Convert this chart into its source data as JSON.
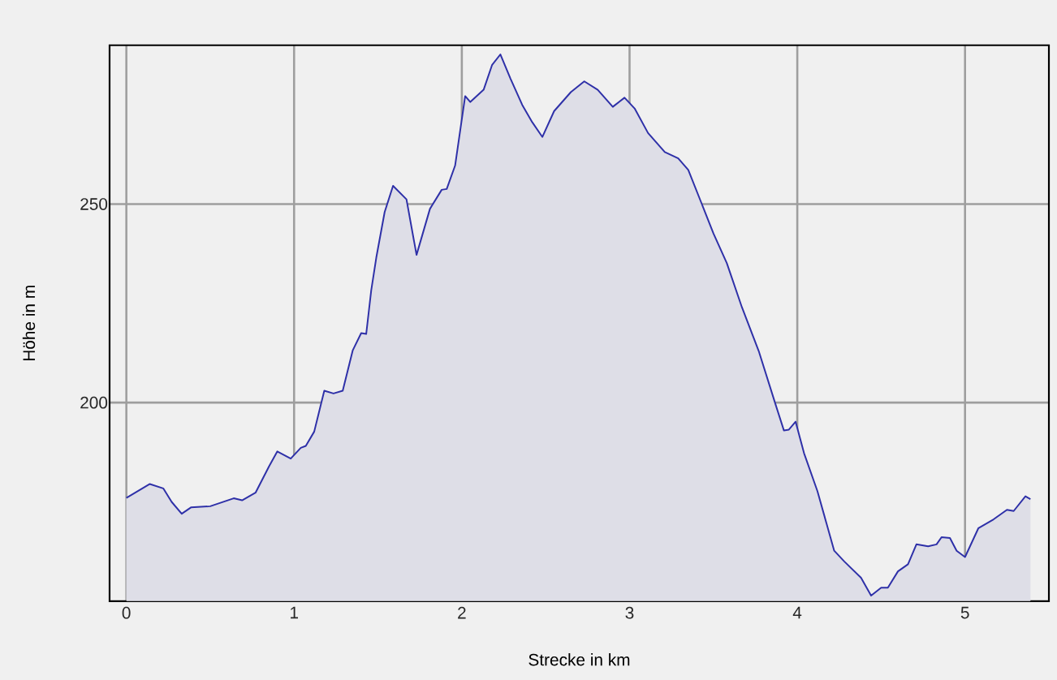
{
  "chart_data": {
    "type": "area",
    "xlabel": "Strecke in km",
    "ylabel": "Höhe in m",
    "x": [
      0.0,
      0.14,
      0.22,
      0.27,
      0.33,
      0.385,
      0.5,
      0.64,
      0.69,
      0.77,
      0.85,
      0.9,
      0.98,
      1.04,
      1.07,
      1.12,
      1.18,
      1.235,
      1.29,
      1.35,
      1.4,
      1.43,
      1.46,
      1.49,
      1.54,
      1.59,
      1.67,
      1.73,
      1.81,
      1.88,
      1.91,
      1.96,
      2.02,
      2.05,
      2.13,
      2.18,
      2.23,
      2.29,
      2.36,
      2.42,
      2.48,
      2.55,
      2.65,
      2.73,
      2.81,
      2.9,
      2.97,
      3.03,
      3.11,
      3.21,
      3.29,
      3.35,
      3.43,
      3.5,
      3.58,
      3.67,
      3.77,
      3.87,
      3.92,
      3.95,
      3.99,
      4.04,
      4.12,
      4.22,
      4.28,
      4.38,
      4.44,
      4.5,
      4.54,
      4.6,
      4.66,
      4.71,
      4.78,
      4.83,
      4.86,
      4.91,
      4.95,
      5.0,
      5.08,
      5.17,
      5.25,
      5.29,
      5.36,
      5.39
    ],
    "values": [
      176,
      179.5,
      178.4,
      175,
      172,
      173.6,
      173.9,
      175.9,
      175.4,
      177.3,
      183.9,
      187.7,
      185.9,
      188.6,
      189.1,
      192.7,
      203,
      202.3,
      203,
      213.2,
      217.5,
      217.3,
      228.3,
      236.5,
      248,
      254.6,
      251.2,
      237.2,
      248.8,
      253.6,
      253.8,
      259.7,
      277.2,
      275.7,
      278.8,
      285,
      287.7,
      281.6,
      275,
      270.6,
      266.9,
      273.4,
      278.2,
      280.9,
      278.8,
      274.5,
      276.8,
      274.1,
      267.9,
      263.1,
      261.5,
      258.6,
      250.1,
      242.6,
      235.1,
      224,
      213,
      199.6,
      193,
      193.2,
      195.2,
      187.3,
      177.7,
      162.7,
      160,
      155.9,
      151.4,
      153.4,
      153.4,
      157.5,
      159.3,
      164.3,
      163.8,
      164.3,
      166.1,
      165.9,
      162.7,
      161.1,
      168.4,
      170.6,
      173,
      172.7,
      176.4,
      175.7
    ],
    "color": "#2e30a8",
    "xlim": [
      -0.1,
      5.5
    ],
    "ylim": [
      150,
      290
    ],
    "xticks": [
      0,
      1,
      2,
      3,
      4,
      5
    ],
    "yticks": [
      200,
      250
    ],
    "grid": true
  }
}
